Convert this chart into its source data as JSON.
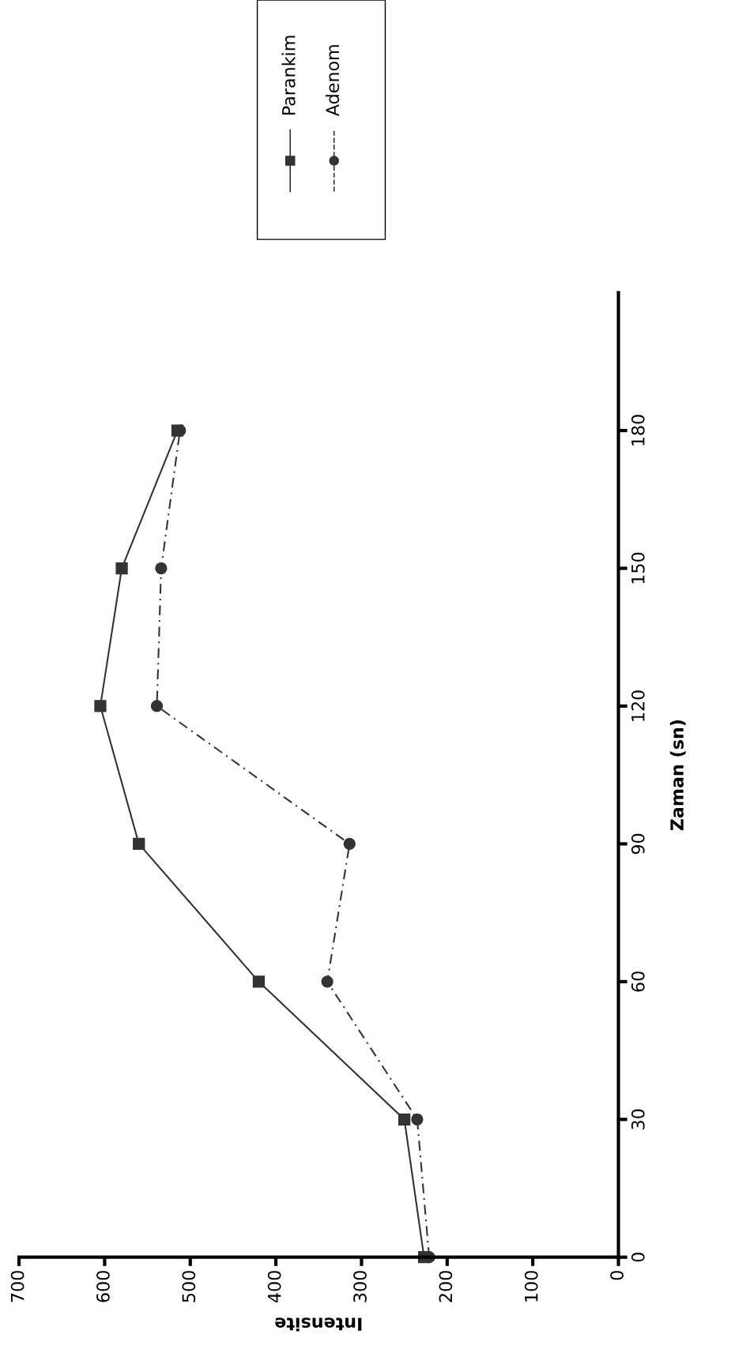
{
  "chart_data": {
    "type": "line",
    "xlabel": "Intensite",
    "ylabel": "Zaman (sn)",
    "series": [
      {
        "name": "Parankim",
        "color": "#333333",
        "marker": "square",
        "line_style": "solid",
        "x": [
          227,
          250,
          420,
          560,
          605,
          580,
          515
        ],
        "values": [
          0,
          30,
          60,
          90,
          120,
          150,
          180
        ]
      },
      {
        "name": "Adenom",
        "color": "#333333",
        "marker": "circle",
        "line_style": "dashed",
        "x": [
          221,
          235,
          340,
          314,
          539,
          534,
          512
        ],
        "values": [
          0,
          30,
          60,
          90,
          120,
          150,
          180
        ]
      }
    ],
    "xlim": [
      700,
      0
    ],
    "xticks": [
      0,
      100,
      200,
      300,
      400,
      500,
      600,
      700
    ],
    "ylim": [
      0,
      210
    ],
    "yticks": [
      0,
      30,
      60,
      90,
      120,
      150,
      180
    ],
    "legend": "top",
    "grid": false
  }
}
